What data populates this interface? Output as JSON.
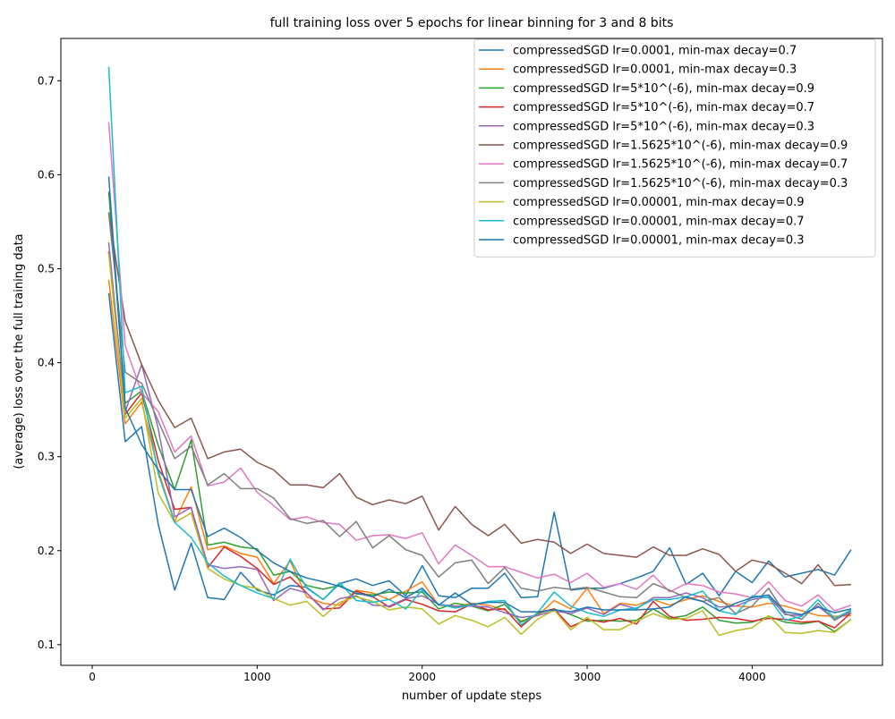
{
  "chart_data": {
    "type": "line",
    "title": "full training loss over 5 epochs for linear binning for 3 and 8 bits",
    "xlabel": "number of update steps",
    "ylabel": "(average) loss over the full training data",
    "xlim": [
      -190,
      4790
    ],
    "ylim": [
      0.078,
      0.745
    ],
    "xticks": [
      0,
      1000,
      2000,
      3000,
      4000
    ],
    "xtick_labels": [
      "0",
      "1000",
      "2000",
      "3000",
      "4000"
    ],
    "yticks": [
      0.1,
      0.2,
      0.3,
      0.4,
      0.5,
      0.6,
      0.7
    ],
    "ytick_labels": [
      "0.1",
      "0.2",
      "0.3",
      "0.4",
      "0.5",
      "0.6",
      "0.7"
    ],
    "grid": false,
    "legend_position": "top-right",
    "x": [
      100,
      200,
      300,
      400,
      500,
      600,
      700,
      800,
      900,
      1000,
      1100,
      1200,
      1300,
      1400,
      1500,
      1600,
      1700,
      1800,
      1900,
      2000,
      2100,
      2200,
      2300,
      2400,
      2500,
      2600,
      2700,
      2800,
      2900,
      3000,
      3100,
      3200,
      3300,
      3400,
      3500,
      3600,
      3700,
      3800,
      3900,
      4000,
      4100,
      4200,
      4300,
      4400,
      4500,
      4600
    ],
    "series": [
      {
        "name": "compressedSGD lr=0.0001, min-max decay=0.7",
        "color": "#1f77b4",
        "values": [
          0.474,
          0.316,
          0.332,
          0.228,
          0.158,
          0.208,
          0.15,
          0.148,
          0.177,
          0.158,
          0.153,
          0.163,
          0.161,
          0.148,
          0.165,
          0.17,
          0.163,
          0.168,
          0.152,
          0.184,
          0.152,
          0.15,
          0.16,
          0.16,
          0.176,
          0.15,
          0.151,
          0.241,
          0.158,
          0.16,
          0.16,
          0.165,
          0.171,
          0.178,
          0.203,
          0.164,
          0.176,
          0.152,
          0.178,
          0.166,
          0.189,
          0.172,
          0.176,
          0.18,
          0.174,
          0.201
        ]
      },
      {
        "name": "compressedSGD lr=0.0001, min-max decay=0.3",
        "color": "#ff7f0e",
        "values": [
          0.488,
          0.335,
          0.358,
          0.285,
          0.231,
          0.268,
          0.201,
          0.205,
          0.197,
          0.193,
          0.165,
          0.189,
          0.151,
          0.144,
          0.142,
          0.158,
          0.155,
          0.148,
          0.157,
          0.167,
          0.142,
          0.14,
          0.144,
          0.142,
          0.137,
          0.125,
          0.131,
          0.147,
          0.138,
          0.16,
          0.133,
          0.144,
          0.142,
          0.148,
          0.142,
          0.148,
          0.152,
          0.146,
          0.141,
          0.14,
          0.144,
          0.141,
          0.136,
          0.131,
          0.13,
          0.131
        ]
      },
      {
        "name": "compressedSGD lr=5*10^(-6), min-max decay=0.9",
        "color": "#2ca02c",
        "values": [
          0.582,
          0.357,
          0.37,
          0.312,
          0.265,
          0.318,
          0.206,
          0.209,
          0.204,
          0.202,
          0.174,
          0.178,
          0.163,
          0.159,
          0.163,
          0.154,
          0.153,
          0.156,
          0.155,
          0.156,
          0.138,
          0.144,
          0.141,
          0.136,
          0.143,
          0.124,
          0.133,
          0.138,
          0.132,
          0.125,
          0.126,
          0.125,
          0.126,
          0.138,
          0.128,
          0.131,
          0.14,
          0.126,
          0.123,
          0.124,
          0.13,
          0.124,
          0.122,
          0.125,
          0.114,
          0.127
        ]
      },
      {
        "name": "compressedSGD lr=5*10^(-6), min-max decay=0.7",
        "color": "#d62728",
        "values": [
          0.518,
          0.345,
          0.368,
          0.296,
          0.244,
          0.246,
          0.182,
          0.204,
          0.194,
          0.181,
          0.164,
          0.172,
          0.155,
          0.138,
          0.139,
          0.157,
          0.151,
          0.14,
          0.148,
          0.143,
          0.136,
          0.135,
          0.143,
          0.137,
          0.138,
          0.119,
          0.134,
          0.138,
          0.119,
          0.127,
          0.124,
          0.128,
          0.122,
          0.146,
          0.13,
          0.126,
          0.127,
          0.129,
          0.128,
          0.125,
          0.128,
          0.127,
          0.124,
          0.125,
          0.118,
          0.134
        ]
      },
      {
        "name": "compressedSGD lr=5*10^(-6), min-max decay=0.3",
        "color": "#9467bd",
        "values": [
          0.528,
          0.348,
          0.398,
          0.33,
          0.236,
          0.246,
          0.185,
          0.181,
          0.183,
          0.18,
          0.147,
          0.16,
          0.155,
          0.137,
          0.149,
          0.152,
          0.142,
          0.141,
          0.149,
          0.152,
          0.143,
          0.141,
          0.141,
          0.14,
          0.134,
          0.129,
          0.131,
          0.136,
          0.133,
          0.139,
          0.132,
          0.143,
          0.138,
          0.15,
          0.15,
          0.155,
          0.15,
          0.14,
          0.141,
          0.148,
          0.151,
          0.132,
          0.131,
          0.141,
          0.127,
          0.134
        ]
      },
      {
        "name": "compressedSGD lr=1.5625*10^(-6), min-max decay=0.9",
        "color": "#8c564b",
        "values": [
          0.56,
          0.444,
          0.398,
          0.36,
          0.331,
          0.341,
          0.298,
          0.305,
          0.308,
          0.294,
          0.286,
          0.27,
          0.27,
          0.267,
          0.282,
          0.257,
          0.249,
          0.254,
          0.25,
          0.258,
          0.222,
          0.247,
          0.228,
          0.216,
          0.228,
          0.208,
          0.212,
          0.209,
          0.197,
          0.207,
          0.197,
          0.195,
          0.193,
          0.204,
          0.195,
          0.195,
          0.202,
          0.196,
          0.178,
          0.19,
          0.186,
          0.176,
          0.165,
          0.185,
          0.163,
          0.164
        ]
      },
      {
        "name": "compressedSGD lr=1.5625*10^(-6), min-max decay=0.7",
        "color": "#e377c2",
        "values": [
          0.656,
          0.418,
          0.368,
          0.348,
          0.305,
          0.322,
          0.269,
          0.273,
          0.288,
          0.262,
          0.248,
          0.233,
          0.236,
          0.23,
          0.228,
          0.211,
          0.216,
          0.217,
          0.213,
          0.219,
          0.186,
          0.206,
          0.195,
          0.183,
          0.183,
          0.177,
          0.171,
          0.175,
          0.166,
          0.176,
          0.161,
          0.165,
          0.159,
          0.174,
          0.156,
          0.165,
          0.163,
          0.156,
          0.154,
          0.15,
          0.167,
          0.147,
          0.141,
          0.153,
          0.136,
          0.142
        ]
      },
      {
        "name": "compressedSGD lr=1.5625*10^(-6), min-max decay=0.3",
        "color": "#7f7f7f",
        "values": [
          0.559,
          0.39,
          0.378,
          0.338,
          0.298,
          0.311,
          0.27,
          0.282,
          0.266,
          0.266,
          0.256,
          0.234,
          0.229,
          0.232,
          0.215,
          0.231,
          0.203,
          0.216,
          0.201,
          0.195,
          0.172,
          0.187,
          0.19,
          0.165,
          0.182,
          0.16,
          0.157,
          0.161,
          0.159,
          0.161,
          0.156,
          0.151,
          0.15,
          0.165,
          0.158,
          0.15,
          0.146,
          0.15,
          0.133,
          0.141,
          0.16,
          0.133,
          0.127,
          0.144,
          0.126,
          0.136
        ]
      },
      {
        "name": "compressedSGD lr=0.00001, min-max decay=0.9",
        "color": "#bcbd22",
        "values": [
          0.516,
          0.341,
          0.362,
          0.261,
          0.23,
          0.24,
          0.181,
          0.17,
          0.163,
          0.16,
          0.149,
          0.142,
          0.146,
          0.13,
          0.145,
          0.151,
          0.146,
          0.137,
          0.14,
          0.138,
          0.122,
          0.131,
          0.126,
          0.119,
          0.129,
          0.111,
          0.127,
          0.137,
          0.116,
          0.129,
          0.116,
          0.116,
          0.125,
          0.133,
          0.127,
          0.128,
          0.136,
          0.11,
          0.115,
          0.118,
          0.131,
          0.113,
          0.112,
          0.115,
          0.113,
          0.127
        ]
      },
      {
        "name": "compressedSGD lr=0.00001, min-max decay=0.7",
        "color": "#17becf",
        "values": [
          0.715,
          0.368,
          0.375,
          0.282,
          0.23,
          0.214,
          0.187,
          0.173,
          0.163,
          0.155,
          0.149,
          0.191,
          0.16,
          0.148,
          0.166,
          0.147,
          0.145,
          0.148,
          0.138,
          0.158,
          0.143,
          0.139,
          0.142,
          0.146,
          0.147,
          0.121,
          0.134,
          0.156,
          0.141,
          0.134,
          0.13,
          0.137,
          0.139,
          0.148,
          0.148,
          0.151,
          0.157,
          0.136,
          0.132,
          0.152,
          0.15,
          0.126,
          0.13,
          0.148,
          0.128,
          0.137
        ]
      },
      {
        "name": "compressedSGD lr=0.00001, min-max decay=0.3",
        "color": "#1f77b4",
        "values": [
          0.598,
          0.352,
          0.313,
          0.286,
          0.265,
          0.265,
          0.215,
          0.224,
          0.214,
          0.2,
          0.187,
          0.178,
          0.171,
          0.167,
          0.162,
          0.155,
          0.151,
          0.159,
          0.15,
          0.16,
          0.142,
          0.155,
          0.143,
          0.145,
          0.145,
          0.135,
          0.135,
          0.137,
          0.135,
          0.14,
          0.137,
          0.137,
          0.137,
          0.138,
          0.14,
          0.151,
          0.146,
          0.136,
          0.144,
          0.15,
          0.153,
          0.135,
          0.132,
          0.14,
          0.134,
          0.138
        ]
      }
    ]
  }
}
